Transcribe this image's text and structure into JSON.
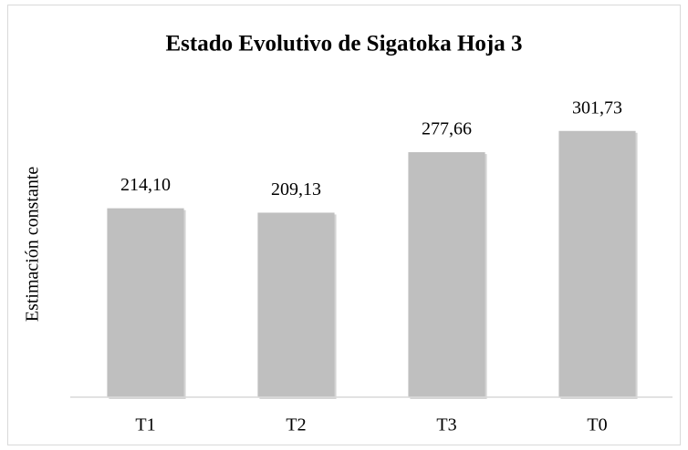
{
  "chart_data": {
    "type": "bar",
    "title": "Estado Evolutivo de Sigatoka Hoja 3",
    "ylabel": "Estimación constante",
    "categories": [
      "T1",
      "T2",
      "T3",
      "T0"
    ],
    "values": [
      214.1,
      209.13,
      277.66,
      301.73
    ],
    "value_labels": [
      "214,10",
      "209,13",
      "277,66",
      "301,73"
    ],
    "color": "#bfbfbf",
    "ylim": [
      0,
      350
    ]
  }
}
